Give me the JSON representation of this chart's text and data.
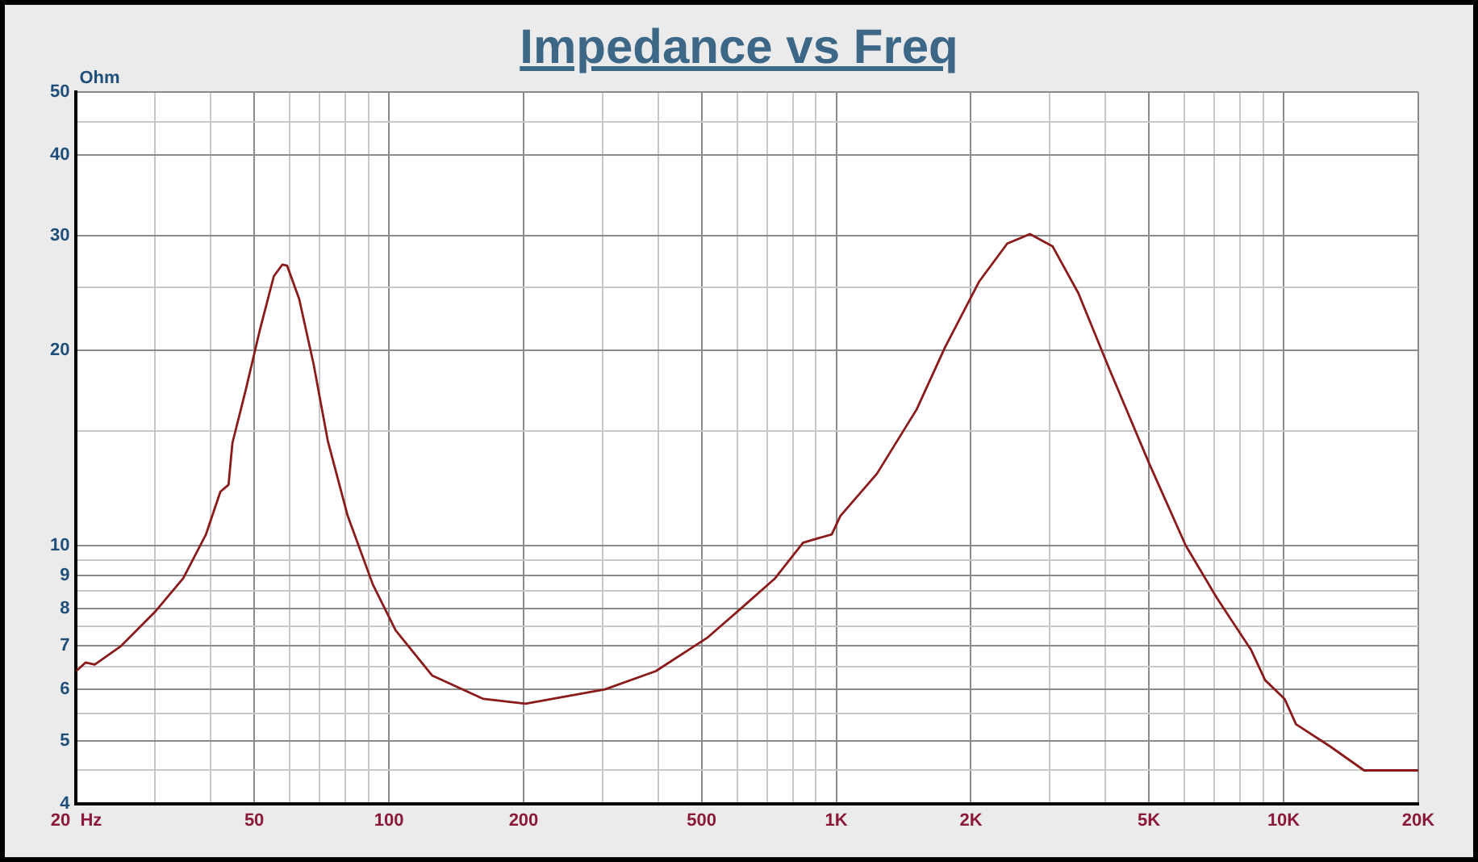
{
  "chart_data": {
    "type": "line",
    "title": "Impedance vs Freq",
    "ylabel": "Ohm",
    "log": "xy",
    "grid": true,
    "legend": false,
    "marker": "none",
    "line_style": "solid",
    "xlim": [
      20,
      20000
    ],
    "xticks": [
      {
        "value": 20,
        "label": "20  Hz"
      },
      {
        "value": 30,
        "label": null
      },
      {
        "value": 40,
        "label": null
      },
      50,
      {
        "value": 60,
        "label": null
      },
      {
        "value": 70,
        "label": null
      },
      {
        "value": 80,
        "label": null
      },
      {
        "value": 90,
        "label": null
      },
      100,
      200,
      {
        "value": 300,
        "label": null
      },
      {
        "value": 400,
        "label": null
      },
      500,
      {
        "value": 600,
        "label": null
      },
      {
        "value": 700,
        "label": null
      },
      {
        "value": 800,
        "label": null
      },
      {
        "value": 900,
        "label": null
      },
      {
        "value": 1000,
        "label": "1K"
      },
      {
        "value": 2000,
        "label": "2K"
      },
      {
        "value": 3000,
        "label": null
      },
      {
        "value": 4000,
        "label": null
      },
      {
        "value": 5000,
        "label": "5K"
      },
      {
        "value": 6000,
        "label": null
      },
      {
        "value": 7000,
        "label": null
      },
      {
        "value": 8000,
        "label": null
      },
      {
        "value": 9000,
        "label": null
      },
      {
        "value": 10000,
        "label": "10K"
      },
      {
        "value": 20000,
        "label": "20K"
      }
    ],
    "ylim": [
      4,
      50
    ],
    "yticks": [
      4,
      {
        "value": 4.5,
        "label": null
      },
      5,
      {
        "value": 5.5,
        "label": null
      },
      6,
      {
        "value": 6.5,
        "label": null
      },
      7,
      {
        "value": 7.5,
        "label": null
      },
      8,
      {
        "value": 8.5,
        "label": null
      },
      9,
      {
        "value": 9.5,
        "label": null
      },
      10,
      {
        "value": 15,
        "label": null
      },
      20,
      {
        "value": 25,
        "label": null
      },
      30,
      40,
      {
        "value": 45,
        "label": null
      },
      50
    ],
    "series": [
      {
        "color": "#8b1a1a",
        "x": [
          20,
          21,
          22,
          25.2,
          30,
          34.7,
          39,
          42,
          43.8,
          44.7,
          47.8,
          51.4,
          55.3,
          57.8,
          59.2,
          63,
          67.9,
          73,
          80.9,
          92.1,
          103.5,
          125,
          162.7,
          202,
          304,
          395,
          514,
          613,
          730,
          843,
          977,
          1021,
          1233,
          1512,
          1750,
          2085,
          2411,
          2710,
          3046,
          3475,
          4078,
          5000,
          6040,
          7090,
          8460,
          9090,
          10050,
          10660,
          12700,
          15130,
          20000
        ],
        "values": [
          6.4,
          6.6,
          6.55,
          7.0,
          7.9,
          8.9,
          10.4,
          12.1,
          12.4,
          14.4,
          17.3,
          21.4,
          26.0,
          27.1,
          27.0,
          24.0,
          19.0,
          14.5,
          11.1,
          8.7,
          7.4,
          6.3,
          5.8,
          5.7,
          6.0,
          6.4,
          7.2,
          8.0,
          8.9,
          10.1,
          10.4,
          11.1,
          12.9,
          16.2,
          20.2,
          25.5,
          29.2,
          30.2,
          28.9,
          24.5,
          18.7,
          13.4,
          10.0,
          8.3,
          6.9,
          6.2,
          5.8,
          5.3,
          4.9,
          4.5,
          4.5
        ]
      }
    ]
  }
}
